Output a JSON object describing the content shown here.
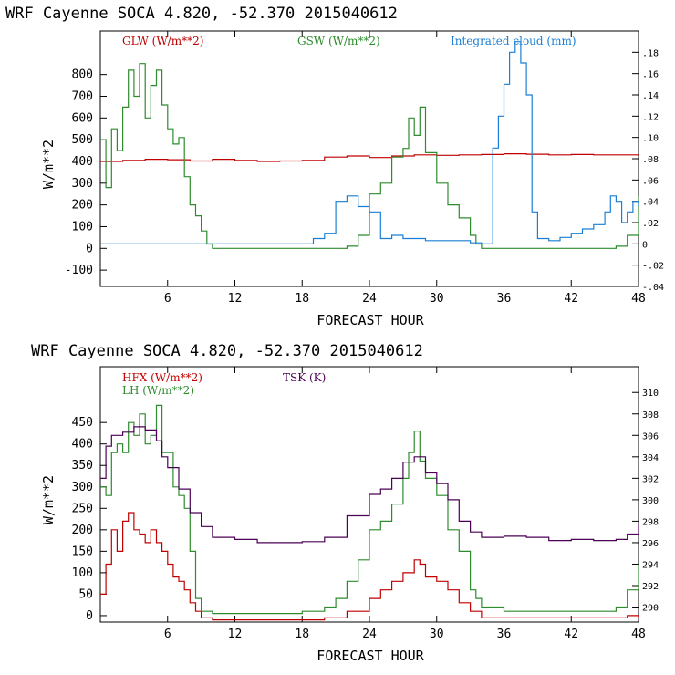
{
  "chart_data": [
    {
      "type": "line",
      "title": "WRF   Cayenne SOCA   4.820, -52.370  2015040612",
      "xlabel": "FORECAST HOUR",
      "ylabel": "W/m**2",
      "xlim": [
        0,
        48
      ],
      "ylim": [
        -175,
        1000
      ],
      "y2lim": [
        -0.04,
        0.2
      ],
      "xticks": [
        "6",
        "12",
        "18",
        "24",
        "30",
        "36",
        "42",
        "48"
      ],
      "yticks": [
        "-100",
        "0",
        "100",
        "200",
        "300",
        "400",
        "500",
        "600",
        "700",
        "800"
      ],
      "y2ticks": [
        "-.04",
        "-.02",
        "0",
        ".02",
        ".04",
        ".06",
        ".08",
        ".10",
        ".12",
        ".14",
        ".16",
        ".18"
      ],
      "legend": [
        "GLW (W/m**2)",
        "GSW (W/m**2)",
        "Integrated cloud (mm)"
      ],
      "colors": {
        "glw": "#c00000",
        "gsw": "#2e8b2e",
        "cloud": "#1a7fd4"
      },
      "series": [
        {
          "name": "GLW (W/m**2)",
          "axis": "left",
          "x": [
            0,
            2,
            4,
            6,
            8,
            10,
            12,
            14,
            16,
            18,
            20,
            22,
            24,
            26,
            28,
            30,
            32,
            34,
            36,
            38,
            40,
            42,
            44,
            46,
            48
          ],
          "y": [
            400,
            405,
            410,
            408,
            402,
            410,
            405,
            400,
            402,
            405,
            420,
            425,
            418,
            425,
            430,
            428,
            430,
            432,
            435,
            433,
            430,
            432,
            430,
            430,
            433
          ]
        },
        {
          "name": "GSW (W/m**2)",
          "axis": "left",
          "x": [
            0,
            0.5,
            1,
            1.5,
            2,
            2.5,
            3,
            3.5,
            4,
            4.5,
            5,
            5.5,
            6,
            6.5,
            7,
            7.5,
            8,
            8.5,
            9,
            9.5,
            10,
            18,
            21.5,
            22,
            23,
            24,
            25,
            26,
            27,
            27.5,
            28,
            28.5,
            29,
            30,
            31,
            32,
            33,
            33.5,
            34,
            45,
            46,
            47,
            48
          ],
          "y": [
            500,
            280,
            550,
            450,
            650,
            820,
            700,
            850,
            600,
            750,
            820,
            660,
            550,
            480,
            510,
            330,
            200,
            150,
            80,
            20,
            0,
            0,
            0,
            10,
            60,
            250,
            300,
            420,
            460,
            600,
            520,
            650,
            440,
            300,
            200,
            140,
            60,
            20,
            0,
            0,
            10,
            60,
            240
          ]
        },
        {
          "name": "Integrated cloud (mm)",
          "axis": "right",
          "x": [
            0,
            18,
            19,
            20,
            21,
            22,
            23,
            24,
            25,
            26,
            27,
            28,
            29,
            30,
            31,
            32,
            33,
            34,
            35,
            35.5,
            36,
            36.5,
            37,
            37.5,
            38,
            38.5,
            39,
            40,
            41,
            42,
            43,
            44,
            45,
            45.5,
            46,
            46.5,
            47,
            47.5,
            48
          ],
          "y": [
            0,
            0,
            0.005,
            0.01,
            0.04,
            0.045,
            0.035,
            0.03,
            0.005,
            0.008,
            0.005,
            0.005,
            0.003,
            0.003,
            0.003,
            0.003,
            0.001,
            0,
            0.09,
            0.12,
            0.15,
            0.18,
            0.19,
            0.17,
            0.14,
            0.03,
            0.005,
            0.003,
            0.006,
            0.01,
            0.014,
            0.018,
            0.03,
            0.045,
            0.04,
            0.02,
            0.03,
            0.04,
            0.035
          ]
        }
      ]
    },
    {
      "type": "line",
      "title": "WRF   Cayenne SOCA   4.820, -52.370  2015040612",
      "xlabel": "FORECAST HOUR",
      "ylabel": "W/m**2",
      "xlim": [
        0,
        48
      ],
      "ylim": [
        -15,
        580
      ],
      "y2lim": [
        288.6,
        312.4
      ],
      "xticks": [
        "6",
        "12",
        "18",
        "24",
        "30",
        "36",
        "42",
        "48"
      ],
      "yticks": [
        "0",
        "50",
        "100",
        "150",
        "200",
        "250",
        "300",
        "350",
        "400",
        "450"
      ],
      "y2ticks": [
        "290",
        "292",
        "294",
        "296",
        "298",
        "300",
        "302",
        "304",
        "306",
        "308",
        "310"
      ],
      "legend": [
        "HFX (W/m**2)",
        "LH  (W/m**2)",
        "TSK (K)"
      ],
      "colors": {
        "hfx": "#c00000",
        "lh": "#2e8b2e",
        "tsk": "#4b0055"
      },
      "series": [
        {
          "name": "HFX (W/m**2)",
          "axis": "left",
          "x": [
            0,
            0.5,
            1,
            1.5,
            2,
            2.5,
            3,
            3.5,
            4,
            4.5,
            5,
            5.5,
            6,
            6.5,
            7,
            7.5,
            8,
            8.5,
            9,
            10,
            12,
            18,
            20,
            22,
            24,
            25,
            26,
            27,
            28,
            28.5,
            29,
            30,
            31,
            32,
            33,
            34,
            36,
            42,
            44,
            46,
            47,
            48
          ],
          "y": [
            50,
            120,
            200,
            150,
            220,
            240,
            200,
            190,
            170,
            200,
            170,
            150,
            120,
            90,
            80,
            60,
            30,
            10,
            -5,
            -10,
            -10,
            -10,
            -5,
            10,
            40,
            60,
            80,
            100,
            130,
            120,
            90,
            80,
            60,
            30,
            10,
            -5,
            -5,
            -5,
            -5,
            -5,
            0,
            -5
          ]
        },
        {
          "name": "LH  (W/m**2)",
          "axis": "left",
          "x": [
            0,
            0.5,
            1,
            1.5,
            2,
            2.5,
            3,
            3.5,
            4,
            4.5,
            5,
            5.5,
            6,
            6.5,
            7,
            7.5,
            8,
            8.5,
            9,
            10,
            12,
            18,
            20,
            21,
            22,
            23,
            24,
            25,
            26,
            27,
            27.5,
            28,
            28.5,
            29,
            30,
            31,
            32,
            33,
            33.5,
            34,
            36,
            42,
            44,
            46,
            47,
            48
          ],
          "y": [
            300,
            280,
            380,
            400,
            380,
            450,
            420,
            470,
            400,
            420,
            490,
            380,
            380,
            300,
            280,
            250,
            150,
            40,
            10,
            5,
            5,
            10,
            20,
            40,
            80,
            130,
            200,
            220,
            260,
            320,
            380,
            430,
            360,
            320,
            280,
            200,
            150,
            60,
            40,
            20,
            10,
            10,
            10,
            20,
            60,
            120
          ]
        },
        {
          "name": "TSK (K)",
          "axis": "right",
          "x": [
            0,
            0.5,
            1,
            2,
            3,
            4,
            5,
            5.5,
            6,
            7,
            8,
            9,
            10,
            12,
            14,
            16,
            18,
            20,
            22,
            24,
            25,
            26,
            27,
            28,
            29,
            30,
            31,
            32,
            33,
            34,
            36,
            38,
            40,
            42,
            44,
            46,
            47,
            48
          ],
          "y": [
            302,
            305,
            306,
            306.3,
            306.8,
            306.5,
            305.5,
            304,
            303,
            301,
            298.8,
            297.5,
            296.5,
            296.3,
            296.0,
            296.0,
            296.1,
            296.5,
            298.5,
            300.5,
            301,
            302,
            303.5,
            304,
            302.5,
            301.5,
            300,
            298,
            297,
            296.5,
            296.6,
            296.5,
            296.2,
            296.3,
            296.2,
            296.3,
            296.8,
            297.8
          ]
        }
      ]
    }
  ]
}
